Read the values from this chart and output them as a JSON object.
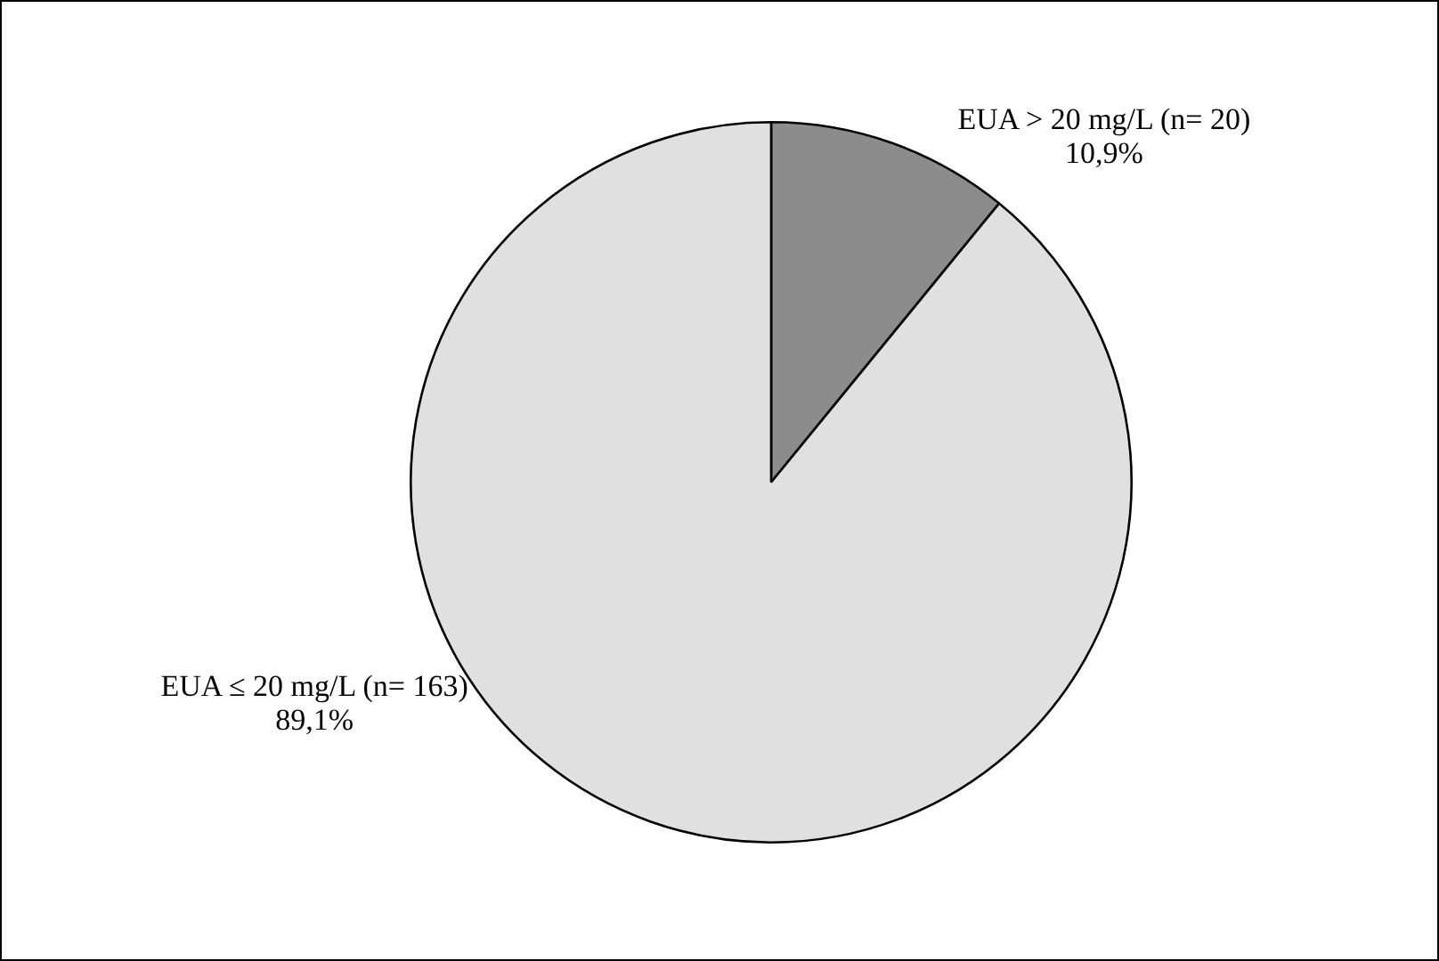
{
  "chart_data": {
    "type": "pie",
    "categories": [
      "EUA > 20 mg/L (n= 20)",
      "EUA ≤ 20 mg/L (n= 163)"
    ],
    "values": [
      10.9,
      89.1
    ],
    "value_labels": [
      "10,9%",
      "89,1%"
    ],
    "colors": [
      "#8c8c8c",
      "#e0e0e0"
    ],
    "legend": false
  }
}
